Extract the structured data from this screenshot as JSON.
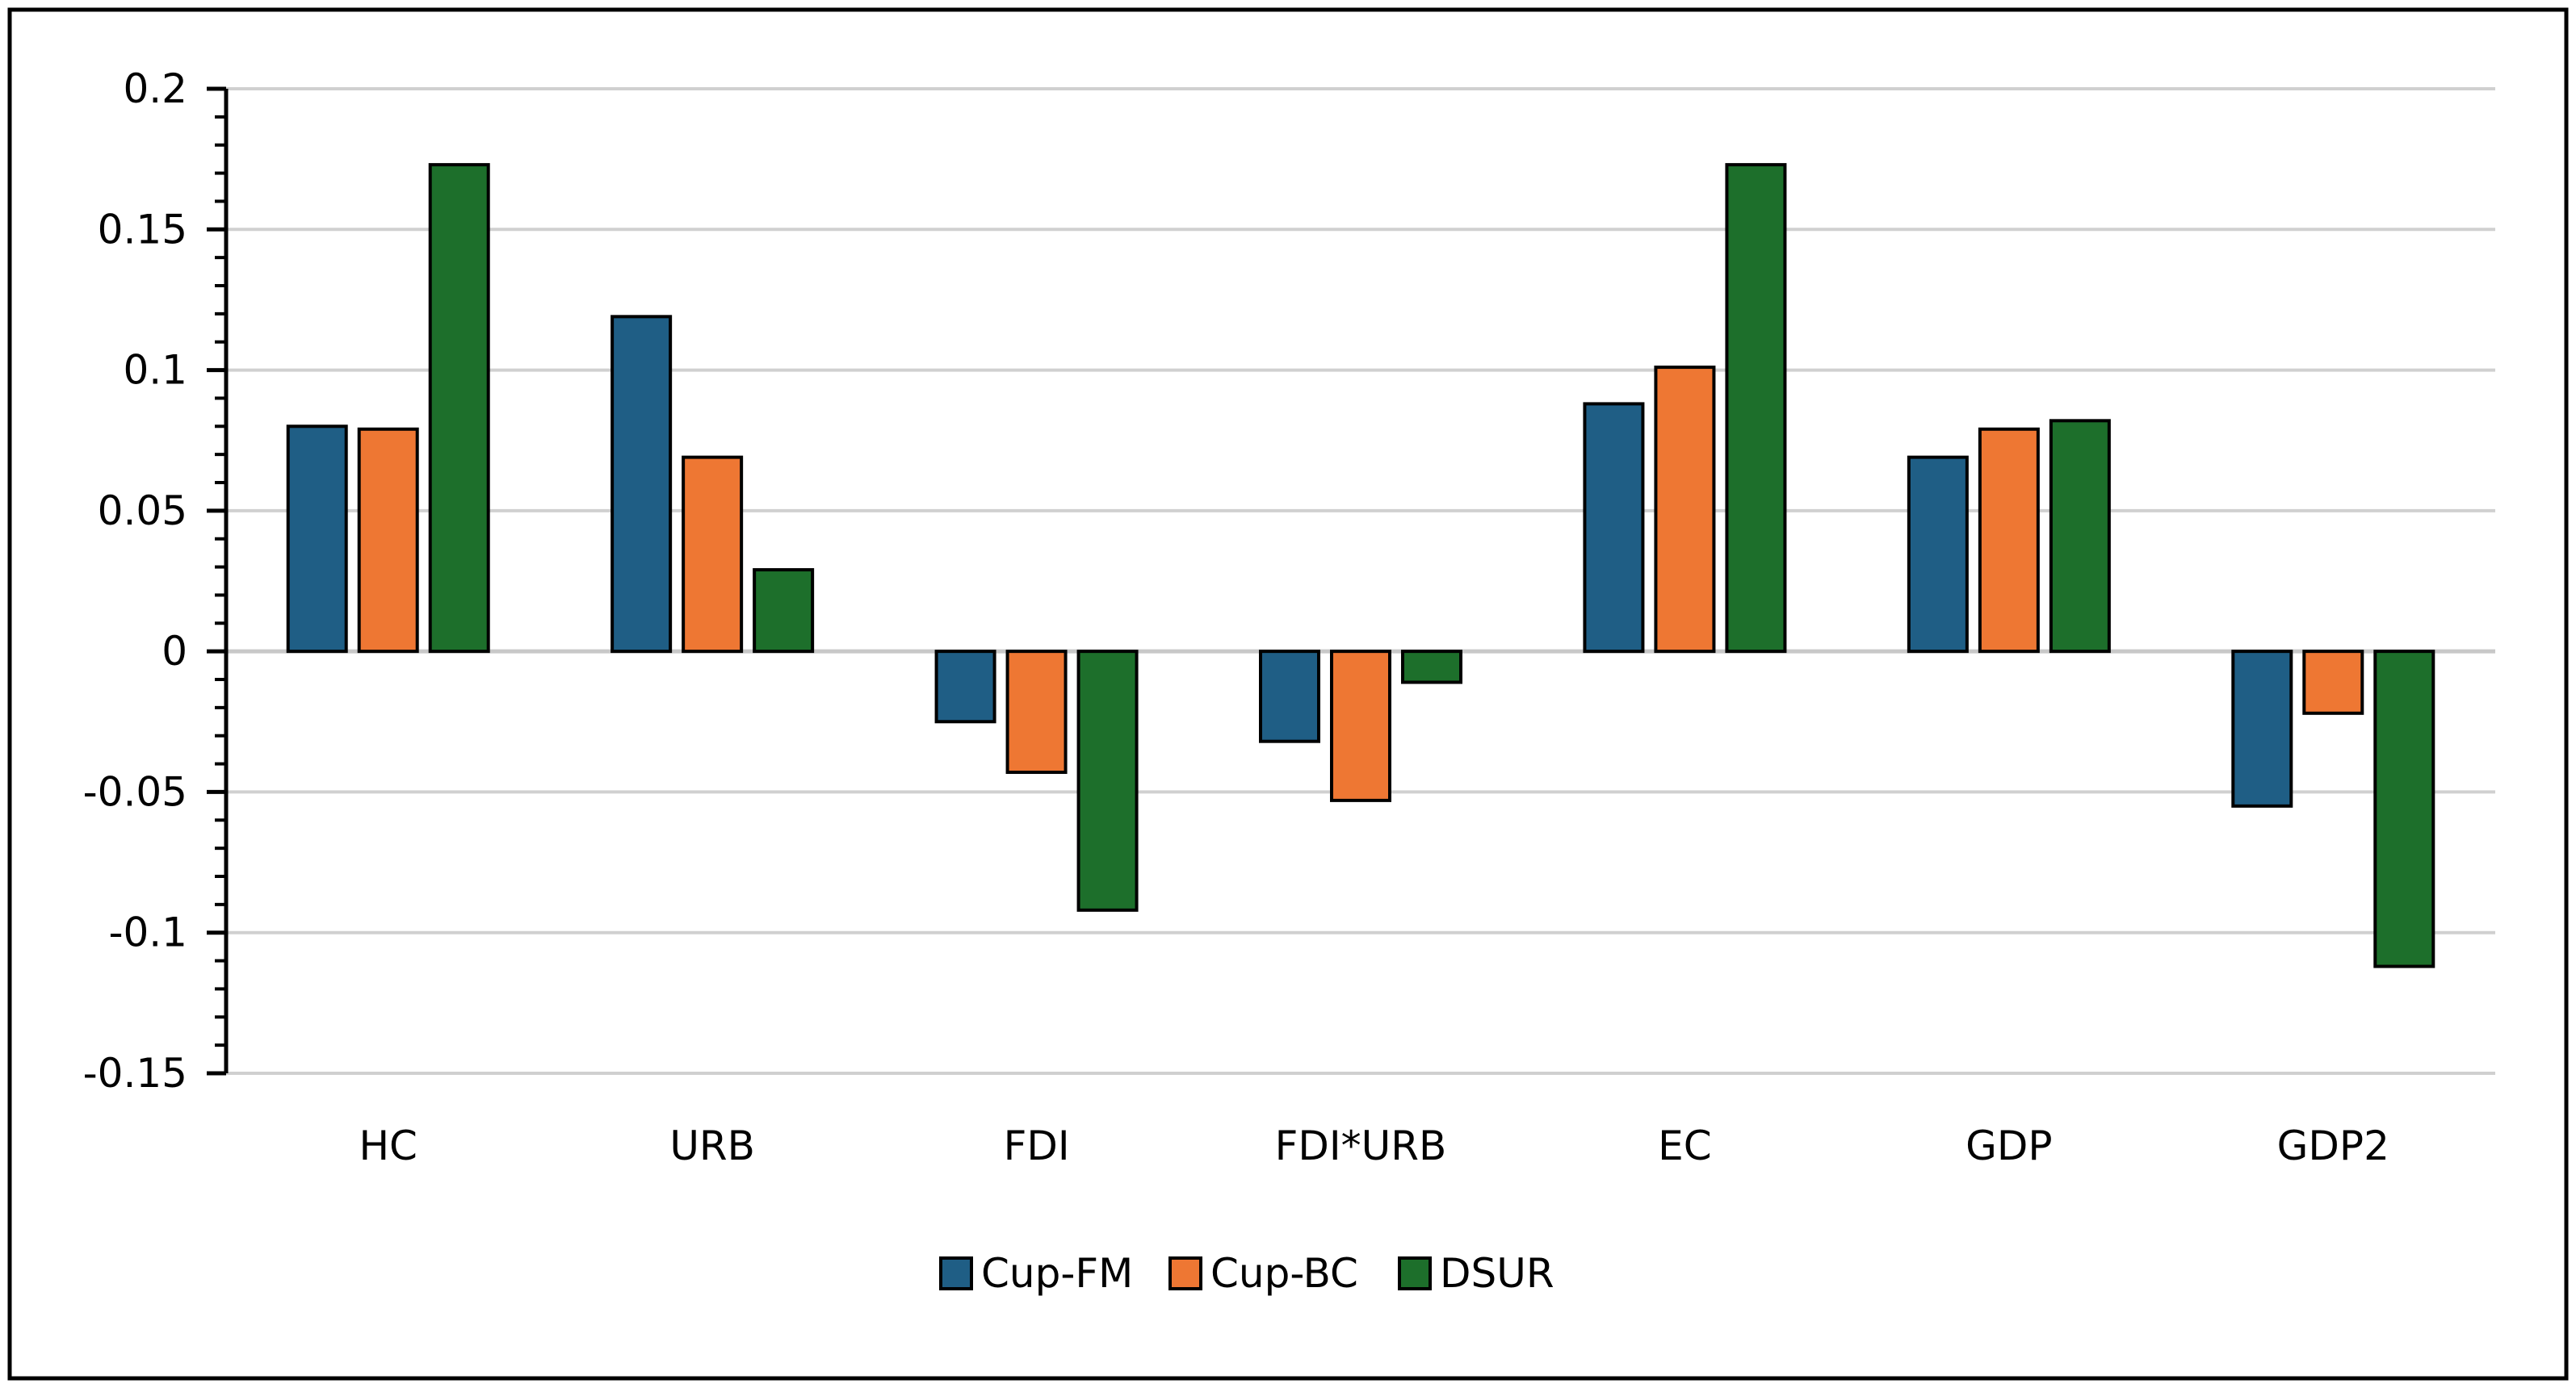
{
  "chart_data": {
    "type": "bar",
    "title": "",
    "xlabel": "",
    "ylabel": "",
    "ylim": [
      -0.15,
      0.2
    ],
    "yticks": [
      0.2,
      0.15,
      0.1,
      0.05,
      0,
      -0.05,
      -0.1,
      -0.15
    ],
    "ytick_labels": [
      "0.2",
      "0.15",
      "0.1",
      "0.05",
      "0",
      "-0.05",
      "-0.1",
      "-0.15"
    ],
    "grid": true,
    "legend_position": "bottom",
    "categories": [
      "HC",
      "URB",
      "FDI",
      "FDI*URB",
      "EC",
      "GDP",
      "GDP2"
    ],
    "series": [
      {
        "name": "Cup-FM",
        "color": "#1F5E85",
        "values": [
          0.08,
          0.119,
          -0.025,
          -0.032,
          0.088,
          0.069,
          -0.055
        ]
      },
      {
        "name": "Cup-BC",
        "color": "#EE7733",
        "values": [
          0.079,
          0.069,
          -0.043,
          -0.053,
          0.101,
          0.079,
          -0.022
        ]
      },
      {
        "name": "DSUR",
        "color": "#1D6F2B",
        "values": [
          0.173,
          0.029,
          -0.092,
          -0.011,
          0.173,
          0.082,
          -0.112
        ]
      }
    ]
  }
}
